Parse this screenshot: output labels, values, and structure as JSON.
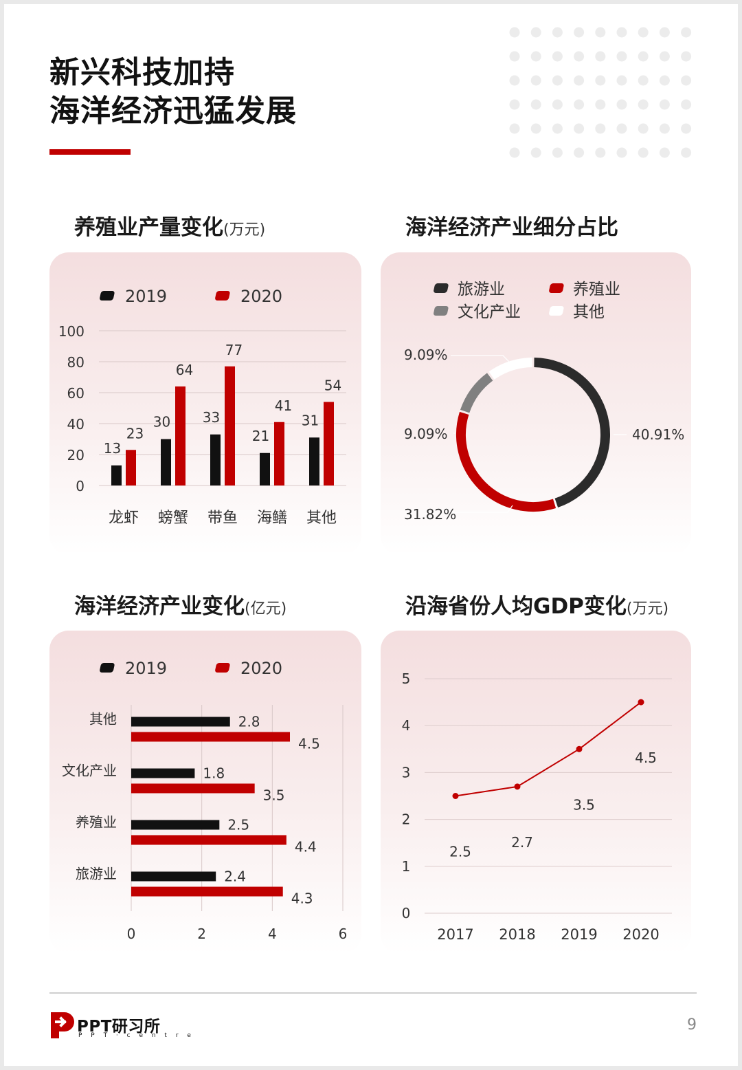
{
  "header": {
    "title_line1": "新兴科技加持",
    "title_line2": "海洋经济迅猛发展"
  },
  "sections": {
    "bar": {
      "title": "养殖业产量变化",
      "unit": "(万元)"
    },
    "donut": {
      "title": "海洋经济产业细分占比"
    },
    "hbar": {
      "title": "海洋经济产业变化",
      "unit": "(亿元)"
    },
    "line": {
      "title": "沿海省份人均GDP变化",
      "unit": "(万元)"
    }
  },
  "colors": {
    "accent": "#c00000",
    "black": "#111111",
    "gray": "#808080",
    "dark_ring": "#2b2b2b",
    "white": "#ffffff"
  },
  "chart_data": [
    {
      "type": "bar",
      "categories": [
        "龙虾",
        "螃蟹",
        "带鱼",
        "海鳝",
        "其他"
      ],
      "series": [
        {
          "name": "2019",
          "values": [
            13,
            30,
            33,
            21,
            31
          ]
        },
        {
          "name": "2020",
          "values": [
            23,
            64,
            77,
            41,
            54
          ]
        }
      ],
      "ylim": [
        0,
        100
      ],
      "yticks": [
        0,
        20,
        40,
        60,
        80,
        100
      ],
      "legend": "top",
      "grid": true
    },
    {
      "type": "pie",
      "style": "donut",
      "legend_items": [
        "旅游业",
        "养殖业",
        "文化产业",
        "其他"
      ],
      "slices": [
        {
          "name": "旅游业",
          "value": 40.91,
          "label": "40.91%"
        },
        {
          "name": "养殖业",
          "value": 31.82,
          "label": "31.82%"
        },
        {
          "name": "文化产业",
          "value": 9.09,
          "label": "9.09%"
        },
        {
          "name": "其他",
          "value": 9.09,
          "label": "9.09%"
        }
      ],
      "legend": "top"
    },
    {
      "type": "bar",
      "orientation": "horizontal",
      "categories": [
        "其他",
        "文化产业",
        "养殖业",
        "旅游业"
      ],
      "series": [
        {
          "name": "2019",
          "values": [
            2.8,
            1.8,
            2.5,
            2.4
          ]
        },
        {
          "name": "2020",
          "values": [
            4.5,
            3.5,
            4.4,
            4.3
          ]
        }
      ],
      "xlim": [
        0,
        6
      ],
      "xticks": [
        0,
        2,
        4,
        6
      ],
      "legend": "top",
      "grid": true
    },
    {
      "type": "line",
      "x": [
        "2017",
        "2018",
        "2019",
        "2020"
      ],
      "values": [
        2.5,
        2.7,
        3.5,
        4.5
      ],
      "ylim": [
        0,
        5
      ],
      "yticks": [
        0,
        1,
        2,
        3,
        4,
        5
      ],
      "grid": true
    }
  ],
  "footer": {
    "logo": "PPT研习所",
    "logo_sub": "P P T · c e n t r e",
    "page_number": "9"
  }
}
